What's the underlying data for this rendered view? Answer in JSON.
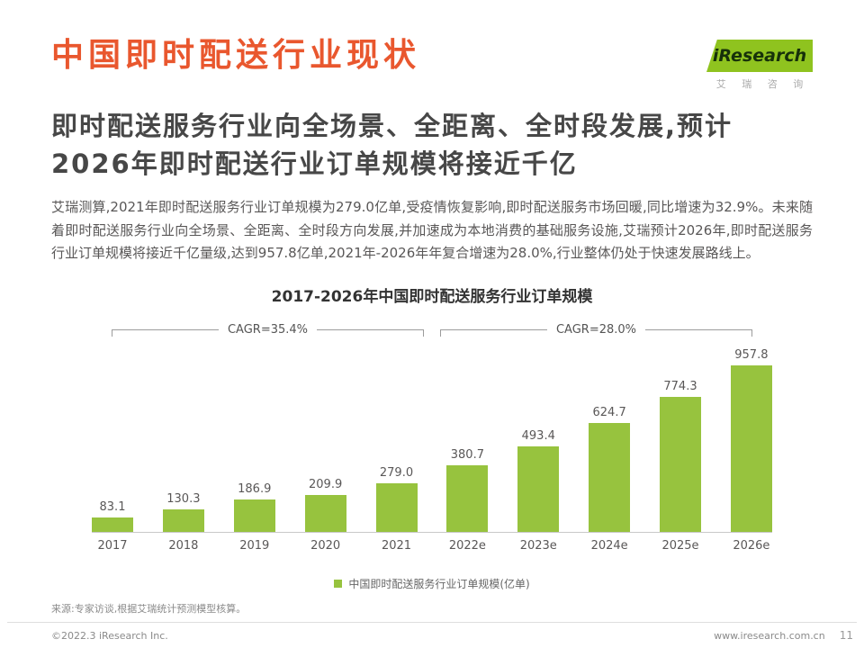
{
  "colors": {
    "accent_red": "#E9572E",
    "brand_green": "#8FC31F",
    "bar_green": "#97C33E",
    "text_dark": "#474747",
    "text_gray": "#595757"
  },
  "header": {
    "title": "中国即时配送行业现状",
    "logo": {
      "brand": "iResearch",
      "brand_cn": "艾 瑞 咨 询"
    }
  },
  "headline": {
    "line1": "即时配送服务行业向全场景、全距离、全时段发展,预计",
    "line2": "2026年即时配送行业订单规模将接近千亿"
  },
  "body": {
    "paragraph": "艾瑞测算,2021年即时配送服务行业订单规模为279.0亿单,受疫情恢复影响,即时配送服务市场回暖,同比增速为32.9%。未来随着即时配送服务行业向全场景、全距离、全时段方向发展,并加速成为本地消费的基础服务设施,艾瑞预计2026年,即时配送服务行业订单规模将接近千亿量级,达到957.8亿单,2021年-2026年年复合增速为28.0%,行业整体仍处于快速发展路线上。"
  },
  "chart_data": {
    "type": "bar",
    "title": "2017-2026年中国即时配送服务行业订单规模",
    "categories": [
      "2017",
      "2018",
      "2019",
      "2020",
      "2021",
      "2022e",
      "2023e",
      "2024e",
      "2025e",
      "2026e"
    ],
    "values": [
      83.1,
      130.3,
      186.9,
      209.9,
      279.0,
      380.7,
      493.4,
      624.7,
      774.3,
      957.8
    ],
    "xlabel": "",
    "ylabel": "",
    "ylim": [
      0,
      1000
    ],
    "grid": false,
    "bar_color": "#97C33E",
    "annotations": [
      {
        "label": "CAGR=35.4%",
        "span": "2017-2021"
      },
      {
        "label": "CAGR=28.0%",
        "span": "2022e-2026e"
      }
    ],
    "legend": [
      "中国即时配送服务行业订单规模(亿单)"
    ],
    "legend_position": "bottom"
  },
  "footer": {
    "source": "来源:专家访谈,根据艾瑞统计预测模型核算。",
    "copyright": "©2022.3 iResearch Inc.",
    "website": "www.iresearch.com.cn",
    "page_number": "11"
  }
}
